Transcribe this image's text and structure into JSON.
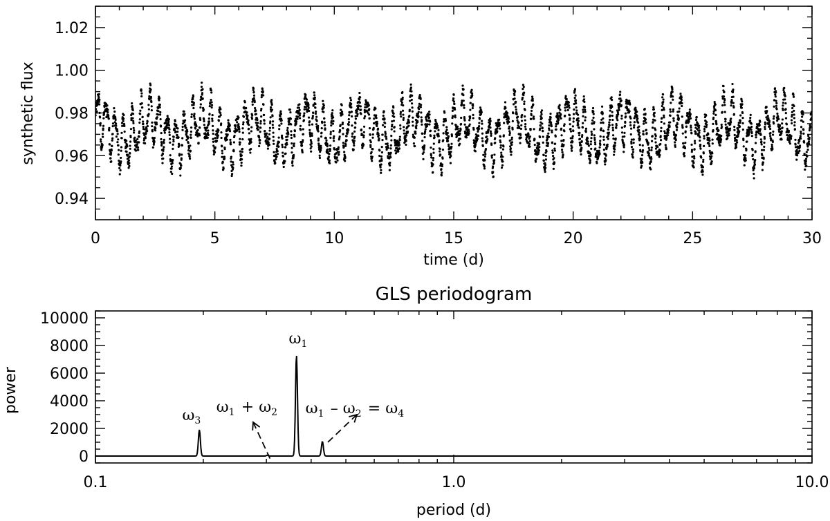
{
  "chart_data": [
    {
      "type": "scatter",
      "xlabel": "time (d)",
      "ylabel": "synthetic flux",
      "xlim": [
        0,
        30
      ],
      "ylim": [
        0.93,
        1.03
      ],
      "xticks": [
        0,
        5,
        10,
        15,
        20,
        25,
        30
      ],
      "xtick_labels": [
        "0",
        "5",
        "10",
        "15",
        "20",
        "25",
        "30"
      ],
      "yticks": [
        0.94,
        0.96,
        0.98,
        1.0,
        1.02
      ],
      "ytick_labels": [
        "0.94",
        "0.96",
        "0.98",
        "1.00",
        "1.02"
      ],
      "series": [
        {
          "n_points": 4000,
          "mean": 0.972,
          "components": [
            {
              "period_d": 0.364,
              "amplitude": 0.01
            },
            {
              "period_d": 2.2,
              "amplitude": 0.006
            },
            {
              "period_d": 0.195,
              "amplitude": 0.004
            }
          ],
          "noise": 0.003
        }
      ],
      "grid": false
    },
    {
      "type": "line",
      "title": "GLS periodogram",
      "xlabel": "period (d)",
      "ylabel": "power",
      "xscale": "log",
      "xlim": [
        0.1,
        10.0
      ],
      "ylim": [
        -500,
        10500
      ],
      "xticks": [
        0.1,
        1.0,
        10.0
      ],
      "xtick_labels": [
        "0.1",
        "1.0",
        "10.0"
      ],
      "yticks": [
        0,
        2000,
        4000,
        6000,
        8000,
        10000
      ],
      "ytick_labels": [
        "0",
        "2000",
        "4000",
        "6000",
        "8000",
        "10000"
      ],
      "peaks": [
        {
          "period": 0.195,
          "power": 1900
        },
        {
          "period": 0.302,
          "power": 60
        },
        {
          "period": 0.364,
          "power": 7300
        },
        {
          "period": 0.43,
          "power": 1050
        }
      ],
      "annotations": [
        {
          "parts": [
            {
              "text": "ω",
              "sub": "3"
            }
          ],
          "near_period": 0.195
        },
        {
          "parts": [
            {
              "text": "ω",
              "sub": "1"
            }
          ],
          "near_period": 0.364
        },
        {
          "parts": [
            {
              "text": "ω",
              "sub": "1"
            },
            {
              "text": "+"
            },
            {
              "text": "ω",
              "sub": "2"
            }
          ],
          "near_period": 0.302
        },
        {
          "parts": [
            {
              "text": "ω",
              "sub": "1"
            },
            {
              "text": "–"
            },
            {
              "text": "ω",
              "sub": "2"
            },
            {
              "text": "="
            },
            {
              "text": "ω",
              "sub": "4"
            }
          ],
          "near_period": 0.43
        }
      ],
      "grid": false
    }
  ]
}
